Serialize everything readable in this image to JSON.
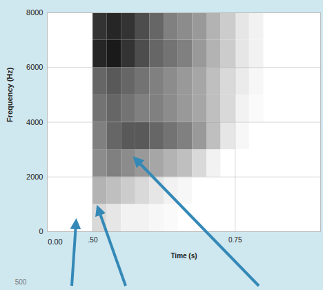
{
  "chart_data": {
    "type": "heatmap",
    "x_label": "Time (s)",
    "y_label": "Frequency (Hz)",
    "xlim": [
      0.42,
      0.9
    ],
    "xticks": [
      {
        "value": 0.5,
        "label": ".50"
      },
      0.75
    ],
    "ylim": [
      0,
      8000
    ],
    "yticks": [
      0,
      2000,
      4000,
      6000,
      8000
    ],
    "grid": true,
    "color": "#000000",
    "time_bins": [
      0.5,
      0.525,
      0.55,
      0.575,
      0.6,
      0.625,
      0.65,
      0.675,
      0.7,
      0.725,
      0.75,
      0.775,
      0.8
    ],
    "frequency_bins": [
      0,
      1000,
      2000,
      3000,
      4000,
      5000,
      6000,
      7000,
      8000
    ],
    "cells": [
      [
        0.15,
        0.1,
        0.05,
        0.05,
        0.03,
        0.02,
        0,
        0,
        0,
        0,
        0,
        0
      ],
      [
        0.3,
        0.25,
        0.2,
        0.15,
        0.1,
        0.05,
        0.03,
        0,
        0,
        0,
        0,
        0
      ],
      [
        0.45,
        0.5,
        0.45,
        0.4,
        0.35,
        0.3,
        0.25,
        0.15,
        0.05,
        0,
        0,
        0
      ],
      [
        0.5,
        0.6,
        0.65,
        0.65,
        0.6,
        0.55,
        0.5,
        0.4,
        0.25,
        0.1,
        0.03,
        0
      ],
      [
        0.55,
        0.6,
        0.55,
        0.5,
        0.5,
        0.45,
        0.4,
        0.35,
        0.25,
        0.15,
        0.05,
        0.02
      ],
      [
        0.6,
        0.65,
        0.6,
        0.55,
        0.5,
        0.45,
        0.4,
        0.35,
        0.25,
        0.15,
        0.08,
        0.03
      ],
      [
        0.85,
        0.9,
        0.8,
        0.7,
        0.6,
        0.55,
        0.5,
        0.4,
        0.3,
        0.2,
        0.1,
        0.05
      ],
      [
        0.8,
        0.85,
        0.8,
        0.7,
        0.6,
        0.5,
        0.45,
        0.4,
        0.3,
        0.2,
        0.1,
        0.05
      ]
    ],
    "cell_range": [
      0,
      1
    ],
    "annotations": [
      "0.00",
      "500"
    ]
  }
}
